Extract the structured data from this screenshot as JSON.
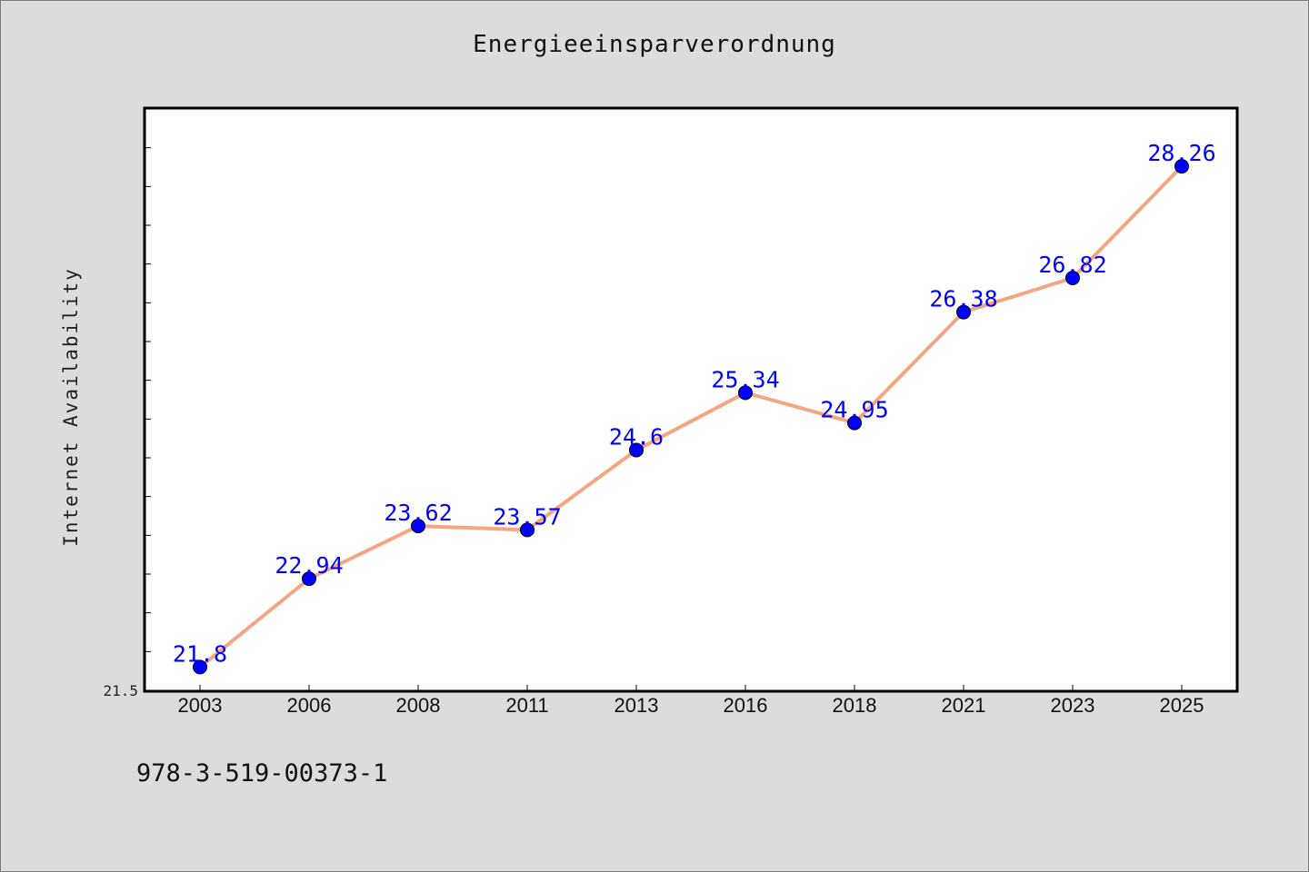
{
  "chart_data": {
    "type": "line",
    "title": "Energieeinsparverordnung",
    "xlabel": "",
    "ylabel": "Internet Availability",
    "categories": [
      "2003",
      "2006",
      "2008",
      "2011",
      "2013",
      "2016",
      "2018",
      "2021",
      "2023",
      "2025"
    ],
    "series": [
      {
        "values": [
          21.8,
          22.94,
          23.62,
          23.57,
          24.6,
          25.34,
          24.95,
          26.38,
          26.82,
          28.26
        ],
        "labels": [
          "21.8",
          "22.94",
          "23.62",
          "23.57",
          "24.6",
          "25.34",
          "24.95",
          "26.38",
          "26.82",
          "28.26"
        ],
        "color": "#f4a582",
        "marker_color": "#0000ff"
      }
    ],
    "ylim": [
      21.5,
      29.0
    ],
    "ytick_labels": [
      "21.5"
    ],
    "grid": false,
    "legend": "none"
  },
  "footer": {
    "text": "978-3-519-00373-1"
  },
  "colors": {
    "background": "#dcdcdc",
    "plot_background": "#ffffff",
    "line": "#f4a582",
    "marker": "#0000ff",
    "data_label": "#0000ff"
  }
}
